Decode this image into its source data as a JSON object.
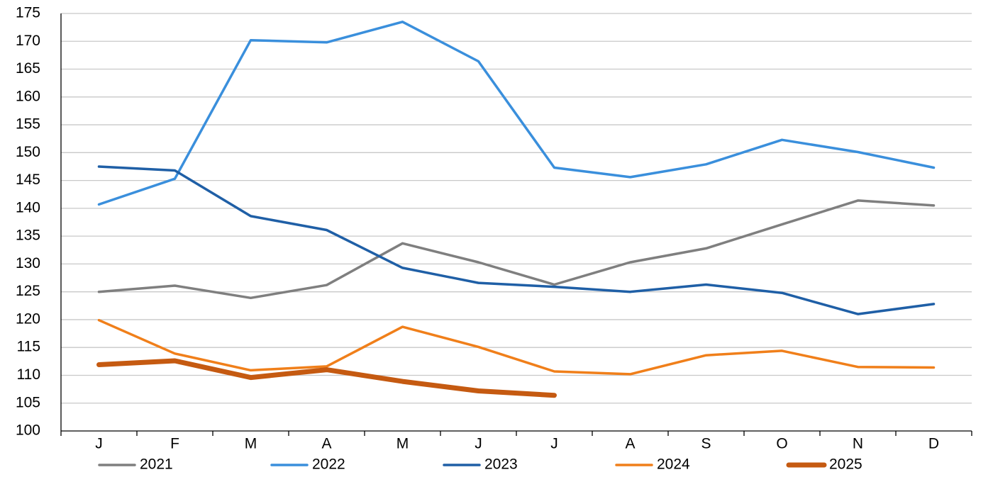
{
  "chart_data": {
    "type": "line",
    "categories": [
      "J",
      "F",
      "M",
      "A",
      "M",
      "J",
      "J",
      "A",
      "S",
      "O",
      "N",
      "D"
    ],
    "ylim": [
      100,
      175
    ],
    "yticks": [
      100,
      105,
      110,
      115,
      120,
      125,
      130,
      135,
      140,
      145,
      150,
      155,
      160,
      165,
      170,
      175
    ],
    "grid": true,
    "legend": "bottom",
    "series": [
      {
        "name": "2021",
        "color": "#7f7f7f",
        "values": [
          125.0,
          126.1,
          123.9,
          126.2,
          133.7,
          130.3,
          126.3,
          130.3,
          132.8,
          137.1,
          141.4,
          140.5
        ]
      },
      {
        "name": "2022",
        "color": "#3a8fdc",
        "values": [
          140.7,
          145.3,
          170.2,
          169.8,
          173.5,
          166.4,
          147.3,
          145.6,
          147.9,
          152.3,
          150.1,
          147.3
        ]
      },
      {
        "name": "2023",
        "color": "#1f5fa6",
        "values": [
          147.5,
          146.8,
          138.6,
          136.1,
          129.3,
          126.6,
          125.9,
          125.0,
          126.3,
          124.8,
          121.0,
          122.8
        ]
      },
      {
        "name": "2024",
        "color": "#f07f1a",
        "values": [
          119.9,
          113.9,
          110.9,
          111.6,
          118.7,
          115.1,
          110.7,
          110.2,
          113.6,
          114.4,
          111.5,
          111.4
        ]
      },
      {
        "name": "2025",
        "color": "#c55a11",
        "values": [
          111.9,
          112.6,
          109.6,
          111.0,
          108.9,
          107.2,
          106.4,
          null,
          null,
          null,
          null,
          null
        ]
      }
    ]
  }
}
